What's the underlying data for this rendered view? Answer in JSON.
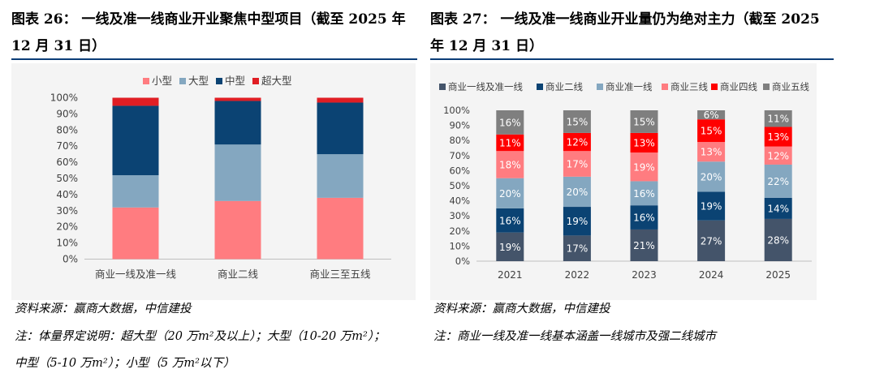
{
  "left": {
    "title": "图表 26： 一线及准一线商业开业聚焦中型项目（截至 2025 年 12 月 31 日）",
    "source": "资料来源：赢商大数据，中信建投",
    "note_line1": "注：体量界定说明：超大型（20 万m²及以上）；大型（10-20 万m²）；",
    "note_line2": "中型（5-10 万m²）；小型（5 万m²以下）"
  },
  "right": {
    "title": "图表 27： 一线及准一线商业开业量仍为绝对主力（截至 2025 年 12 月 31 日）",
    "source": "资料来源：赢商大数据，中信建投",
    "note": "注：商业一线及准一线基本涵盖一线城市及强二线城市"
  },
  "chart_data": [
    {
      "type": "bar",
      "stacked": true,
      "title": "",
      "categories": [
        "商业一线及准一线",
        "商业二线",
        "商业三至五线"
      ],
      "series": [
        {
          "name": "小型",
          "color": "#ff7c80",
          "values": [
            32,
            36,
            38
          ]
        },
        {
          "name": "大型",
          "color": "#84a7c0",
          "values": [
            20,
            35,
            27
          ]
        },
        {
          "name": "中型",
          "color": "#0b4373",
          "values": [
            43,
            27,
            32
          ]
        },
        {
          "name": "超大型",
          "color": "#e01e24",
          "values": [
            5,
            2,
            3
          ]
        }
      ],
      "ylim": [
        0,
        100
      ],
      "yticks": [
        "0%",
        "10%",
        "20%",
        "30%",
        "40%",
        "50%",
        "60%",
        "70%",
        "80%",
        "90%",
        "100%"
      ],
      "legend": "top",
      "data_labels": false
    },
    {
      "type": "bar",
      "stacked": true,
      "title": "",
      "categories": [
        "2021",
        "2022",
        "2023",
        "2024",
        "2025"
      ],
      "series": [
        {
          "name": "商业一线及准一线",
          "color": "#44546a",
          "label_color": "#ffffff",
          "values": [
            19,
            17,
            21,
            27,
            28
          ],
          "labels": [
            "19%",
            "17%",
            "21%",
            "27%",
            "28%"
          ]
        },
        {
          "name": "商业二线",
          "color": "#0b4373",
          "label_color": "#ffffff",
          "values": [
            16,
            19,
            16,
            19,
            14
          ],
          "labels": [
            "16%",
            "19%",
            "16%",
            "19%",
            "14%"
          ]
        },
        {
          "name": "商业准一线",
          "color": "#84a7c0",
          "label_color": "#ffffff",
          "values": [
            20,
            20,
            16,
            20,
            22
          ],
          "labels": [
            "20%",
            "20%",
            "16%",
            "20%",
            "22%"
          ]
        },
        {
          "name": "商业三线",
          "color": "#ff7c80",
          "label_color": "#ffffff",
          "values": [
            18,
            17,
            19,
            13,
            12
          ],
          "labels": [
            "18%",
            "17%",
            "19%",
            "13%",
            "12%"
          ]
        },
        {
          "name": "商业四线",
          "color": "#ff0000",
          "label_color": "#ffffff",
          "values": [
            11,
            12,
            13,
            15,
            13
          ],
          "labels": [
            "11%",
            "12%",
            "13%",
            "15%",
            "13%"
          ]
        },
        {
          "name": "商业五线",
          "color": "#7f7f7f",
          "label_color": "#ffffff",
          "values": [
            16,
            15,
            15,
            6,
            11
          ],
          "labels": [
            "16%",
            "15%",
            "15%",
            "6%",
            "11%"
          ]
        }
      ],
      "ylim": [
        0,
        100
      ],
      "yticks": [
        "0%",
        "10%",
        "20%",
        "30%",
        "40%",
        "50%",
        "60%",
        "70%",
        "80%",
        "90%",
        "100%"
      ],
      "legend": "top",
      "data_labels": true
    }
  ]
}
